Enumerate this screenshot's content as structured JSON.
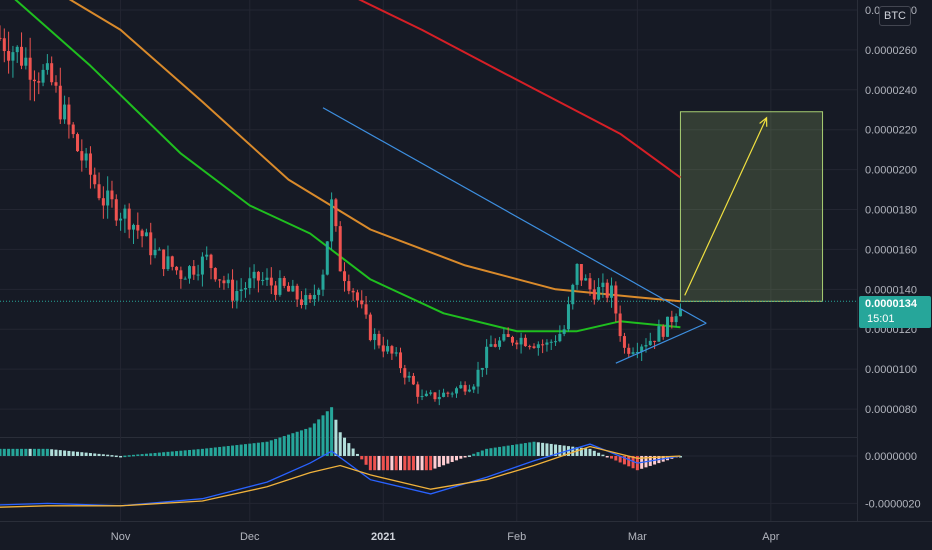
{
  "colors": {
    "background": "#161a25",
    "grid": "#232632",
    "up": "#26a69a",
    "down": "#ef5350",
    "ma_fast": "#1fbf1f",
    "ma_mid": "#d98a2b",
    "ma_slow": "#d61f26",
    "trendline": "#3d8fe0",
    "target_arrow": "#f0e040",
    "target_zone": "#b6e07a",
    "macd_line": "#2962ff",
    "signal_line": "#f0b23c"
  },
  "ui": {
    "currency": "BTC",
    "last_price": "0.0000134",
    "countdown": "15:01"
  },
  "chart_data": [
    {
      "type": "candlestick",
      "title": "",
      "x_axis": {
        "tick_labels": [
          {
            "label": "Nov",
            "date": "2020-11-01"
          },
          {
            "label": "Dec",
            "date": "2020-12-01"
          },
          {
            "label": "2021",
            "date": "2021-01-01",
            "bold": true
          },
          {
            "label": "Feb",
            "date": "2021-02-01"
          },
          {
            "label": "Mar",
            "date": "2021-03-01"
          },
          {
            "label": "Apr",
            "date": "2021-04-01"
          }
        ],
        "range": [
          "2020-10-04",
          "2021-04-21"
        ]
      },
      "y_axis": {
        "tick_labels": [
          "0.0000280",
          "0.0000260",
          "0.0000240",
          "0.0000220",
          "0.0000200",
          "0.0000180",
          "0.0000160",
          "0.0000140",
          "0.0000120",
          "0.0000100",
          "0.0000080"
        ],
        "range": [
          6.6e-06,
          2.85e-05
        ]
      },
      "candles_trend": [
        {
          "date": "2020-10-04",
          "price": 2.66e-05
        },
        {
          "date": "2020-10-10",
          "price": 2.55e-05
        },
        {
          "date": "2020-10-16",
          "price": 2.43e-05
        },
        {
          "date": "2020-10-22",
          "price": 2.1e-05
        },
        {
          "date": "2020-10-28",
          "price": 1.85e-05
        },
        {
          "date": "2020-11-03",
          "price": 1.76e-05
        },
        {
          "date": "2020-11-09",
          "price": 1.58e-05
        },
        {
          "date": "2020-11-15",
          "price": 1.48e-05
        },
        {
          "date": "2020-11-21",
          "price": 1.55e-05
        },
        {
          "date": "2020-11-27",
          "price": 1.38e-05
        },
        {
          "date": "2020-12-03",
          "price": 1.45e-05
        },
        {
          "date": "2020-12-09",
          "price": 1.4e-05
        },
        {
          "date": "2020-12-15",
          "price": 1.32e-05
        },
        {
          "date": "2020-12-18",
          "price": 1.5e-05
        },
        {
          "date": "2020-12-20",
          "price": 1.82e-05
        },
        {
          "date": "2020-12-22",
          "price": 1.52e-05
        },
        {
          "date": "2020-12-25",
          "price": 1.4e-05
        },
        {
          "date": "2020-12-29",
          "price": 1.18e-05
        },
        {
          "date": "2021-01-04",
          "price": 1.05e-05
        },
        {
          "date": "2021-01-10",
          "price": 8.5e-06
        },
        {
          "date": "2021-01-16",
          "price": 8.8e-06
        },
        {
          "date": "2021-01-22",
          "price": 9.4e-06
        },
        {
          "date": "2021-01-26",
          "price": 1.12e-05
        },
        {
          "date": "2021-02-01",
          "price": 1.16e-05
        },
        {
          "date": "2021-02-08",
          "price": 1.12e-05
        },
        {
          "date": "2021-02-12",
          "price": 1.2e-05
        },
        {
          "date": "2021-02-15",
          "price": 1.5e-05
        },
        {
          "date": "2021-02-18",
          "price": 1.4e-05
        },
        {
          "date": "2021-02-23",
          "price": 1.38e-05
        },
        {
          "date": "2021-02-26",
          "price": 1.1e-05
        },
        {
          "date": "2021-03-04",
          "price": 1.15e-05
        },
        {
          "date": "2021-03-08",
          "price": 1.22e-05
        },
        {
          "date": "2021-03-11",
          "price": 1.34e-05
        }
      ],
      "moving_averages": [
        {
          "key": "ma_fast",
          "points": [
            [
              "2020-10-04",
              2.92e-05
            ],
            [
              "2020-10-25",
              2.52e-05
            ],
            [
              "2020-11-15",
              2.08e-05
            ],
            [
              "2020-12-01",
              1.82e-05
            ],
            [
              "2020-12-15",
              1.68e-05
            ],
            [
              "2020-12-29",
              1.45e-05
            ],
            [
              "2021-01-15",
              1.28e-05
            ],
            [
              "2021-02-01",
              1.19e-05
            ],
            [
              "2021-02-15",
              1.19e-05
            ],
            [
              "2021-02-25",
              1.24e-05
            ],
            [
              "2021-03-11",
              1.21e-05
            ]
          ]
        },
        {
          "key": "ma_mid",
          "points": [
            [
              "2020-10-15",
              2.92e-05
            ],
            [
              "2020-11-01",
              2.7e-05
            ],
            [
              "2020-11-20",
              2.34e-05
            ],
            [
              "2020-12-10",
              1.95e-05
            ],
            [
              "2020-12-29",
              1.7e-05
            ],
            [
              "2021-01-20",
              1.52e-05
            ],
            [
              "2021-02-10",
              1.4e-05
            ],
            [
              "2021-03-01",
              1.36e-05
            ],
            [
              "2021-03-11",
              1.34e-05
            ]
          ]
        },
        {
          "key": "ma_slow",
          "points": [
            [
              "2020-12-20",
              2.92e-05
            ],
            [
              "2021-01-10",
              2.7e-05
            ],
            [
              "2021-02-01",
              2.45e-05
            ],
            [
              "2021-02-25",
              2.18e-05
            ],
            [
              "2021-03-11",
              1.96e-05
            ]
          ]
        }
      ],
      "trendlines": [
        {
          "from": [
            "2020-12-18",
            2.31e-05
          ],
          "to": [
            "2021-03-17",
            1.23e-05
          ]
        },
        {
          "from": [
            "2021-02-24",
            1.03e-05
          ],
          "to": [
            "2021-03-17",
            1.23e-05
          ]
        }
      ],
      "target_zone": {
        "from_date": "2021-03-11",
        "to_date": "2021-04-13",
        "low": 1.34e-05,
        "high": 2.29e-05
      },
      "target_arrow": {
        "from": [
          "2021-03-12",
          1.37e-05
        ],
        "to": [
          "2021-03-31",
          2.26e-05
        ]
      },
      "current_price_line": 1.34e-05
    },
    {
      "type": "macd",
      "y_axis": {
        "tick_labels": [
          "0.0000000",
          "-0.0000020"
        ],
        "range": [
          -2.7e-06,
          8e-07
        ]
      },
      "macd_line": [
        [
          "2020-09-27",
          -2.1e-06
        ],
        [
          "2020-10-15",
          -2e-06
        ],
        [
          "2020-11-01",
          -2.1e-06
        ],
        [
          "2020-11-20",
          -1.8e-06
        ],
        [
          "2020-12-05",
          -1.1e-06
        ],
        [
          "2020-12-15",
          -3e-07
        ],
        [
          "2020-12-20",
          2e-07
        ],
        [
          "2020-12-29",
          -1e-06
        ],
        [
          "2021-01-12",
          -1.6e-06
        ],
        [
          "2021-01-25",
          -9e-07
        ],
        [
          "2021-02-05",
          -2e-07
        ],
        [
          "2021-02-18",
          5e-07
        ],
        [
          "2021-03-01",
          -3e-07
        ],
        [
          "2021-03-11",
          0.0
        ]
      ],
      "signal_line": [
        [
          "2020-09-27",
          -2.2e-06
        ],
        [
          "2020-10-15",
          -2.1e-06
        ],
        [
          "2020-11-01",
          -2.1e-06
        ],
        [
          "2020-11-20",
          -1.9e-06
        ],
        [
          "2020-12-05",
          -1.3e-06
        ],
        [
          "2020-12-15",
          -7e-07
        ],
        [
          "2020-12-22",
          -4e-07
        ],
        [
          "2020-12-29",
          -8e-07
        ],
        [
          "2021-01-12",
          -1.4e-06
        ],
        [
          "2021-01-25",
          -1e-06
        ],
        [
          "2021-02-05",
          -4e-07
        ],
        [
          "2021-02-18",
          4e-07
        ],
        [
          "2021-03-01",
          -1e-07
        ],
        [
          "2021-03-11",
          0.0
        ]
      ]
    }
  ]
}
